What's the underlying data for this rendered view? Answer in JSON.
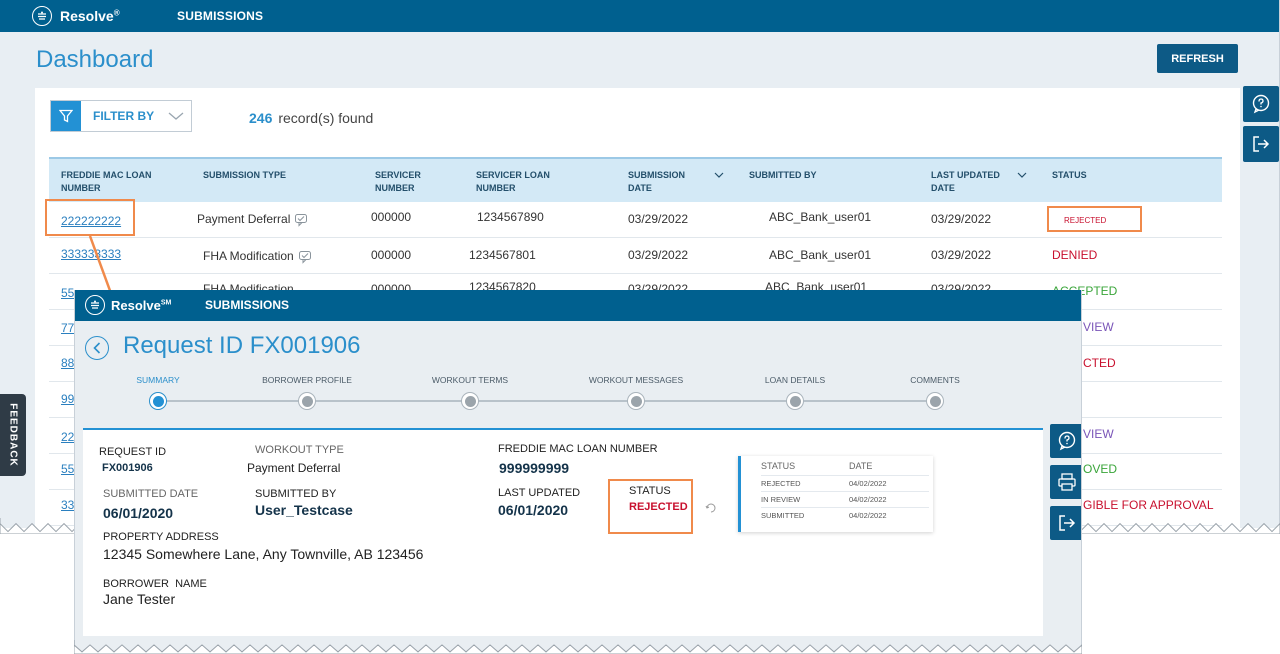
{
  "dashboard": {
    "app_name": "Resolve",
    "app_mark": "®",
    "nav_item": "SUBMISSIONS",
    "page_title": "Dashboard",
    "refresh_label": "REFRESH",
    "filter_label": "FILTER BY",
    "record_count": "246",
    "record_suffix": "record(s) found",
    "columns": [
      "FREDDIE MAC LOAN NUMBER",
      "SUBMISSION TYPE",
      "SERVICER NUMBER",
      "SERVICER LOAN NUMBER",
      "SUBMISSION DATE",
      "SUBMITTED BY",
      "LAST UPDATED DATE",
      "STATUS"
    ],
    "rows": [
      {
        "loan": "222222222",
        "type": "Payment Deferral",
        "servicer": "000000",
        "servicer_loan": "1234567890",
        "sub_date": "03/29/2022",
        "submitted_by": "ABC_Bank_user01",
        "updated": "03/29/2022",
        "status": "REJECTED"
      },
      {
        "loan": "333333333",
        "type": "FHA Modification",
        "servicer": "000000",
        "servicer_loan": "1234567801",
        "sub_date": "03/29/2022",
        "submitted_by": "ABC_Bank_user01",
        "updated": "03/29/2022",
        "status": "DENIED"
      },
      {
        "loan": "55",
        "type": "FHA Modification",
        "servicer": "000000",
        "servicer_loan": "1234567820",
        "sub_date": "03/29/2022",
        "submitted_by": "ABC_Bank_user01",
        "updated": "03/29/2022",
        "status": "ACCEPTED"
      },
      {
        "loan": "77",
        "status": "VIEW"
      },
      {
        "loan": "88",
        "status": "CTED"
      },
      {
        "loan": "99",
        "status": ""
      },
      {
        "loan": "22",
        "status": "VIEW"
      },
      {
        "loan": "55",
        "status": "OVED"
      },
      {
        "loan": "33",
        "status": "GIBLE FOR APPROVAL"
      }
    ],
    "feedback_label": "FEEDBACK"
  },
  "request": {
    "app_name": "Resolve",
    "app_mark": "SM",
    "nav_item": "SUBMISSIONS",
    "title": "Request ID FX001906",
    "steps": [
      {
        "label": "SUMMARY",
        "active": true
      },
      {
        "label": "BORROWER PROFILE",
        "active": false
      },
      {
        "label": "WORKOUT TERMS",
        "active": false
      },
      {
        "label": "WORKOUT MESSAGES",
        "active": false
      },
      {
        "label": "LOAN DETAILS",
        "active": false
      },
      {
        "label": "COMMENTS",
        "active": false
      }
    ],
    "request_id_label": "REQUEST ID",
    "request_id": "FX001906",
    "workout_type_label": "WORKOUT TYPE",
    "workout_type": "Payment Deferral",
    "fm_loan_label": "FREDDIE MAC LOAN NUMBER",
    "fm_loan": "999999999",
    "submitted_date_label": "SUBMITTED DATE",
    "submitted_date": "06/01/2020",
    "submitted_by_label": "SUBMITTED BY",
    "submitted_by": "User_Testcase",
    "last_updated_label": "LAST UPDATED",
    "last_updated": "06/01/2020",
    "status_label": "STATUS",
    "status": "REJECTED",
    "property_label": "PROPERTY ADDRESS",
    "property": "12345 Somewhere Lane, Any Townville, AB 123456",
    "borrower_label": "BORROWER  NAME",
    "borrower": "Jane Tester",
    "history": {
      "col_status": "STATUS",
      "col_date": "DATE",
      "rows": [
        {
          "status": "REJECTED",
          "date": "04/02/2022"
        },
        {
          "status": "IN REVIEW",
          "date": "04/02/2022"
        },
        {
          "status": "SUBMITTED",
          "date": "04/02/2022"
        }
      ]
    }
  },
  "colors": {
    "brand_bar": "#00608f",
    "accent": "#2b8fcb",
    "callout": "#f08a4b",
    "rejected": "#c8102e"
  }
}
